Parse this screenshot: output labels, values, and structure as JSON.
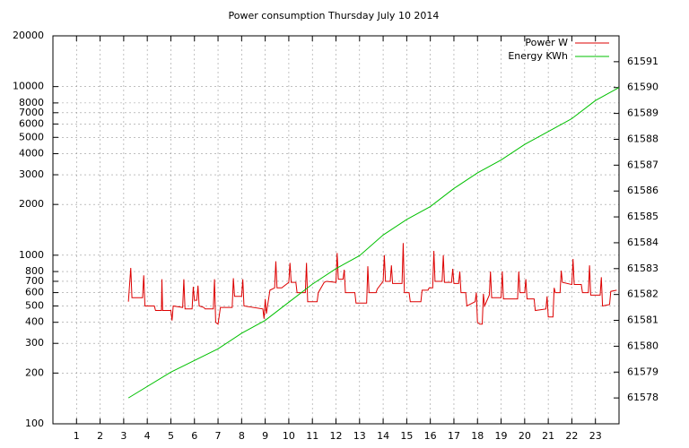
{
  "chart_data": {
    "type": "line",
    "title": "Power consumption Thursday July 10 2014",
    "log_y": true,
    "grid": true,
    "legend_position": "top-right",
    "xlim": [
      0,
      24
    ],
    "xticks": [
      1,
      2,
      3,
      4,
      5,
      6,
      7,
      8,
      9,
      10,
      11,
      12,
      13,
      14,
      15,
      16,
      17,
      18,
      19,
      20,
      21,
      22,
      23
    ],
    "ylim": [
      100,
      20000
    ],
    "yticks": [
      100,
      200,
      300,
      400,
      500,
      600,
      700,
      800,
      1000,
      2000,
      3000,
      4000,
      5000,
      6000,
      7000,
      8000,
      10000,
      20000
    ],
    "y2lim": [
      61577,
      61592
    ],
    "y2ticks": [
      61578,
      61579,
      61580,
      61581,
      61582,
      61583,
      61584,
      61585,
      61586,
      61587,
      61588,
      61589,
      61590,
      61591
    ],
    "series": [
      {
        "name": "Power W",
        "color": "#dd0000",
        "x": [
          3.2,
          3.3,
          3.35,
          3.8,
          3.85,
          3.9,
          4.3,
          4.35,
          4.6,
          4.62,
          4.65,
          5.0,
          5.05,
          5.1,
          5.5,
          5.55,
          5.6,
          5.9,
          5.95,
          6.0,
          6.1,
          6.15,
          6.2,
          6.4,
          6.45,
          6.8,
          6.85,
          6.9,
          7.0,
          7.1,
          7.6,
          7.65,
          7.7,
          8.0,
          8.05,
          8.1,
          8.9,
          8.95,
          9.0,
          9.05,
          9.2,
          9.4,
          9.45,
          9.5,
          9.7,
          10.0,
          10.05,
          10.1,
          10.3,
          10.35,
          10.7,
          10.75,
          10.8,
          11.2,
          11.25,
          11.5,
          11.6,
          12.0,
          12.05,
          12.1,
          12.3,
          12.35,
          12.4,
          12.8,
          12.85,
          13.3,
          13.35,
          13.4,
          13.7,
          13.75,
          14.0,
          14.05,
          14.1,
          14.3,
          14.35,
          14.4,
          14.8,
          14.85,
          14.9,
          15.1,
          15.15,
          15.6,
          15.65,
          15.9,
          15.95,
          16.1,
          16.15,
          16.2,
          16.5,
          16.55,
          16.6,
          16.9,
          16.95,
          17.0,
          17.2,
          17.25,
          17.3,
          17.5,
          17.55,
          17.9,
          17.95,
          18.0,
          18.1,
          18.2,
          18.25,
          18.3,
          18.5,
          18.55,
          18.6,
          19.0,
          19.05,
          19.1,
          19.7,
          19.75,
          19.8,
          20.0,
          20.05,
          20.1,
          20.4,
          20.45,
          20.9,
          20.95,
          21.0,
          21.2,
          21.25,
          21.3,
          21.5,
          21.55,
          21.6,
          22.0,
          22.05,
          22.1,
          22.4,
          22.45,
          22.7,
          22.75,
          22.8,
          23.2,
          23.25,
          23.3,
          23.6,
          23.65,
          23.9
        ],
        "values": [
          530,
          840,
          560,
          560,
          760,
          500,
          500,
          470,
          470,
          720,
          470,
          470,
          410,
          500,
          490,
          720,
          480,
          480,
          650,
          540,
          540,
          660,
          500,
          490,
          480,
          480,
          720,
          400,
          390,
          490,
          490,
          730,
          570,
          570,
          720,
          500,
          480,
          420,
          550,
          450,
          620,
          640,
          920,
          640,
          640,
          690,
          900,
          690,
          690,
          600,
          600,
          900,
          530,
          530,
          600,
          690,
          700,
          690,
          1030,
          720,
          720,
          820,
          600,
          600,
          520,
          520,
          860,
          600,
          600,
          630,
          700,
          1000,
          700,
          700,
          870,
          680,
          680,
          1180,
          600,
          600,
          530,
          530,
          620,
          620,
          640,
          640,
          1060,
          700,
          700,
          1000,
          690,
          690,
          830,
          680,
          680,
          800,
          600,
          600,
          500,
          530,
          600,
          400,
          390,
          390,
          590,
          500,
          580,
          800,
          560,
          560,
          800,
          550,
          550,
          800,
          600,
          600,
          720,
          550,
          550,
          470,
          480,
          570,
          430,
          430,
          640,
          600,
          600,
          810,
          690,
          670,
          950,
          670,
          670,
          600,
          600,
          870,
          580,
          580,
          740,
          500,
          510,
          610,
          620
        ]
      },
      {
        "name": "Energy KWh",
        "color": "#00c000",
        "axis": "y2",
        "x": [
          3.2,
          5,
          7,
          8,
          9,
          10,
          11,
          12,
          13,
          14,
          15,
          16,
          17,
          18,
          19,
          20,
          21,
          22,
          23,
          24
        ],
        "values": [
          61578.0,
          61579.0,
          61579.9,
          61580.5,
          61581.0,
          61581.7,
          61582.4,
          61583.0,
          61583.5,
          61584.3,
          61584.9,
          61585.4,
          61586.1,
          61586.7,
          61587.2,
          61587.8,
          61588.3,
          61588.8,
          61589.5,
          61590.0
        ]
      }
    ]
  }
}
